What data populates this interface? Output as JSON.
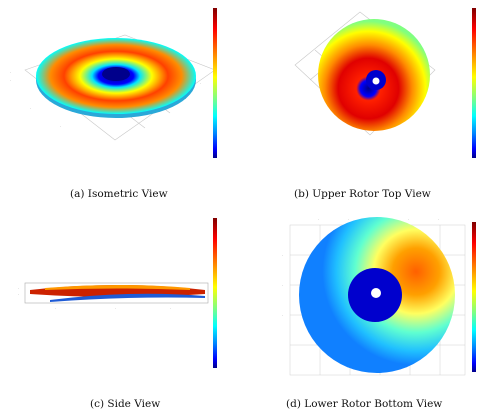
{
  "figure": {
    "panels": [
      {
        "id": "a",
        "caption": "(a) Isometric View"
      },
      {
        "id": "b",
        "caption": "(b) Upper Rotor Top View"
      },
      {
        "id": "c",
        "caption": "(c) Side View"
      },
      {
        "id": "d",
        "caption": "(d) Lower Rotor Bottom View"
      }
    ],
    "colormap": [
      "#00008b",
      "#0000ff",
      "#0080ff",
      "#00ffff",
      "#80ff80",
      "#ffff00",
      "#ff8000",
      "#ff0000",
      "#7f0000"
    ]
  }
}
